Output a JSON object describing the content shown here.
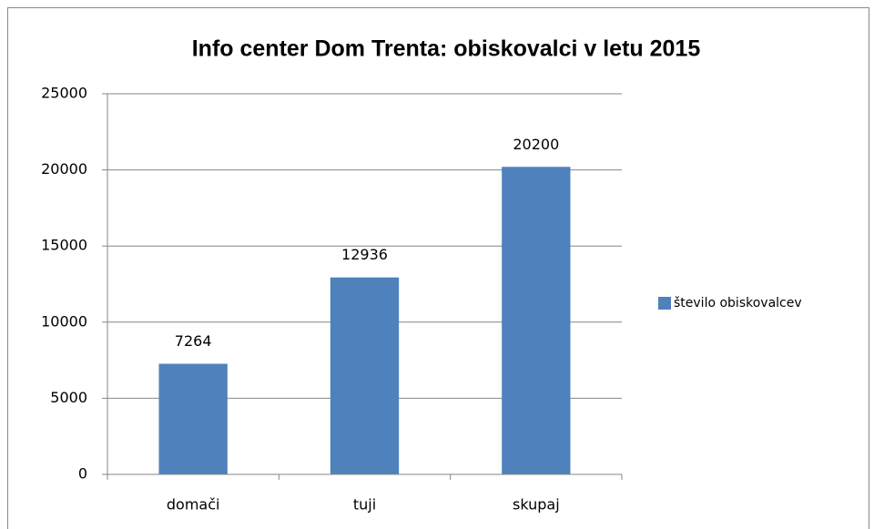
{
  "chart_data": {
    "type": "bar",
    "title": "Info center Dom Trenta: obiskovalci v letu 2015",
    "categories": [
      "domači",
      "tuji",
      "skupaj"
    ],
    "series": [
      {
        "name": "število obiskovalcev",
        "color": "#4f81bd",
        "values": [
          7264,
          12936,
          20200
        ]
      }
    ],
    "ylim": [
      0,
      25000
    ],
    "yticks": [
      0,
      5000,
      10000,
      15000,
      20000,
      25000
    ],
    "grid": true,
    "legend": "right",
    "data_labels": true
  }
}
